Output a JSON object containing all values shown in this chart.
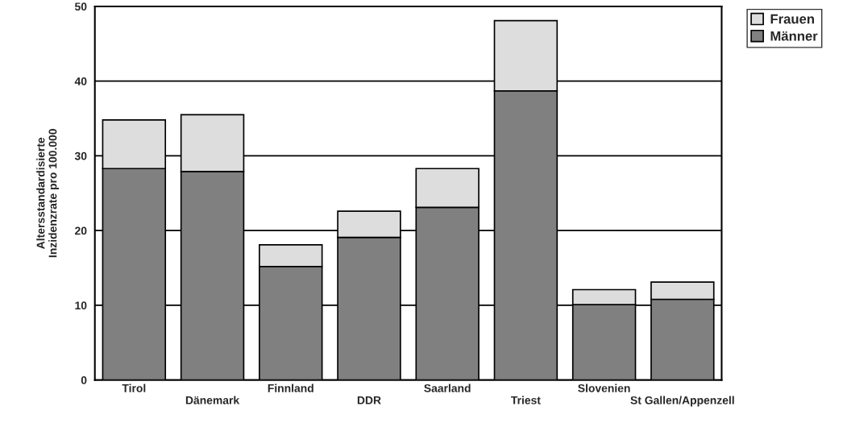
{
  "chart_data": {
    "type": "bar",
    "stacked": true,
    "ylabel": "Altersstandardisierte\nInzidenzrate pro 100.000",
    "categories": [
      "Tirol",
      "Dänemark",
      "Finnland",
      "DDR",
      "Saarland",
      "Triest",
      "Slovenien",
      "St Gallen/Appenzell"
    ],
    "series": [
      {
        "name": "Männer",
        "color": "#808080",
        "values": [
          28.3,
          27.9,
          15.2,
          19.1,
          23.1,
          38.7,
          10.1,
          10.8
        ]
      },
      {
        "name": "Frauen",
        "color": "#dddddd",
        "values": [
          6.5,
          7.6,
          2.9,
          3.5,
          5.2,
          9.4,
          2.0,
          2.3
        ]
      }
    ],
    "ylim": [
      0,
      50
    ],
    "yticks": [
      0,
      10,
      20,
      30,
      40,
      50
    ],
    "grid": "y",
    "legend": "top right"
  }
}
